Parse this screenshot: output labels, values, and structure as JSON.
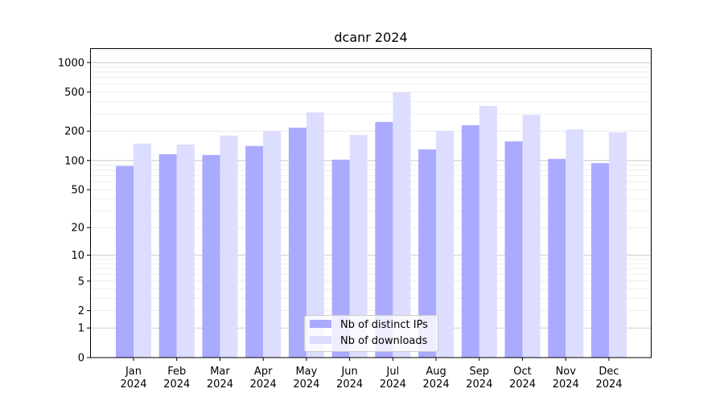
{
  "chart_data": {
    "type": "bar",
    "title": "dcanr 2024",
    "xlabel": "",
    "ylabel": "",
    "yscale": "symlog (log10(y+1))",
    "ylim": [
      0,
      1400
    ],
    "yticks": [
      0,
      1,
      2,
      5,
      10,
      20,
      50,
      100,
      200,
      500,
      1000
    ],
    "grid": true,
    "legend_position": "bottom-center",
    "categories": [
      "Jan\n2024",
      "Feb\n2024",
      "Mar\n2024",
      "Apr\n2024",
      "May\n2024",
      "Jun\n2024",
      "Jul\n2024",
      "Aug\n2024",
      "Sep\n2024",
      "Oct\n2024",
      "Nov\n2024",
      "Dec\n2024"
    ],
    "series": [
      {
        "name": "Nb of distinct IPs",
        "color": "#aaaaff",
        "values": [
          88,
          116,
          114,
          141,
          217,
          102,
          248,
          130,
          230,
          157,
          104,
          94
        ]
      },
      {
        "name": "Nb of downloads",
        "color": "#ddddff",
        "values": [
          149,
          146,
          180,
          201,
          311,
          183,
          498,
          201,
          361,
          293,
          209,
          194
        ]
      }
    ]
  }
}
